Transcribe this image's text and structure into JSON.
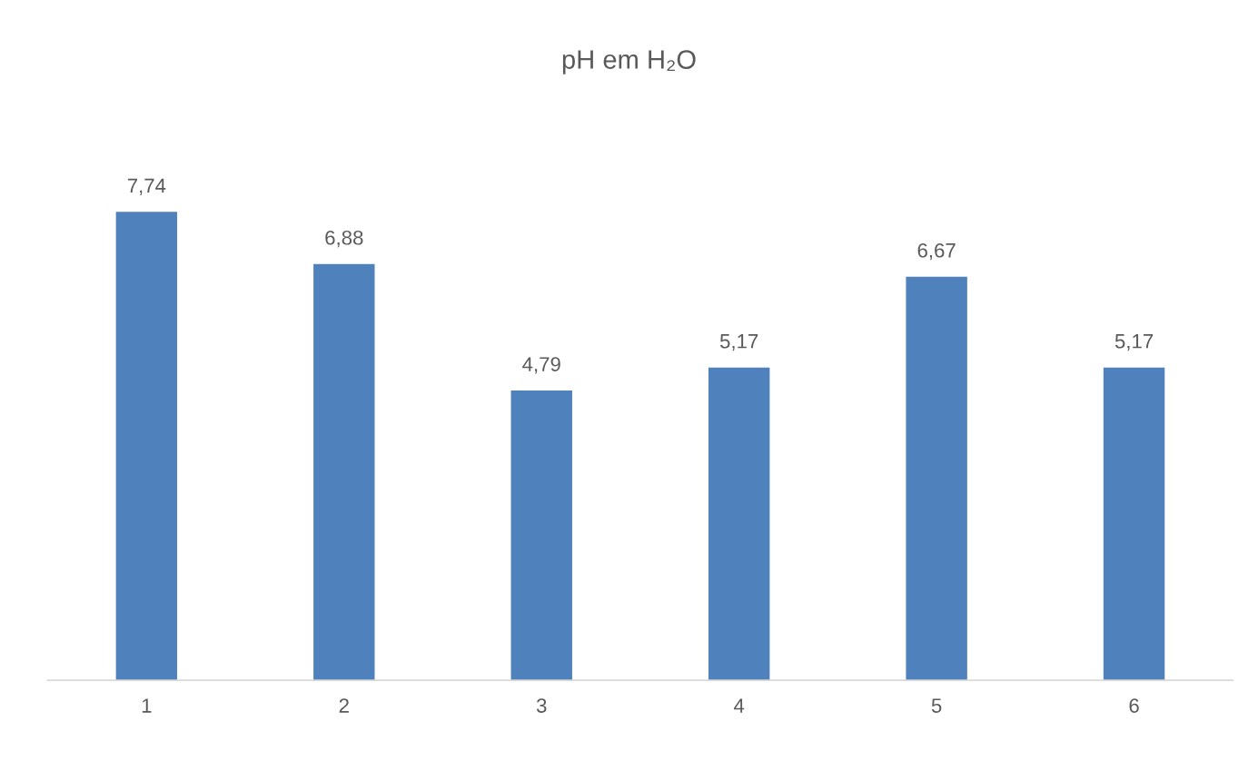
{
  "chart_data": {
    "type": "bar",
    "title": "pH em H₂O",
    "categories": [
      "1",
      "2",
      "3",
      "4",
      "5",
      "6"
    ],
    "values": [
      7.74,
      6.88,
      4.79,
      5.17,
      6.67,
      5.17
    ],
    "color": "#4f81bd",
    "value_labels": [
      "7,74",
      "6,88",
      "4,79",
      "5,17",
      "6,67",
      "5,17"
    ],
    "tick_labels": "x",
    "grid": false,
    "legend": false
  }
}
